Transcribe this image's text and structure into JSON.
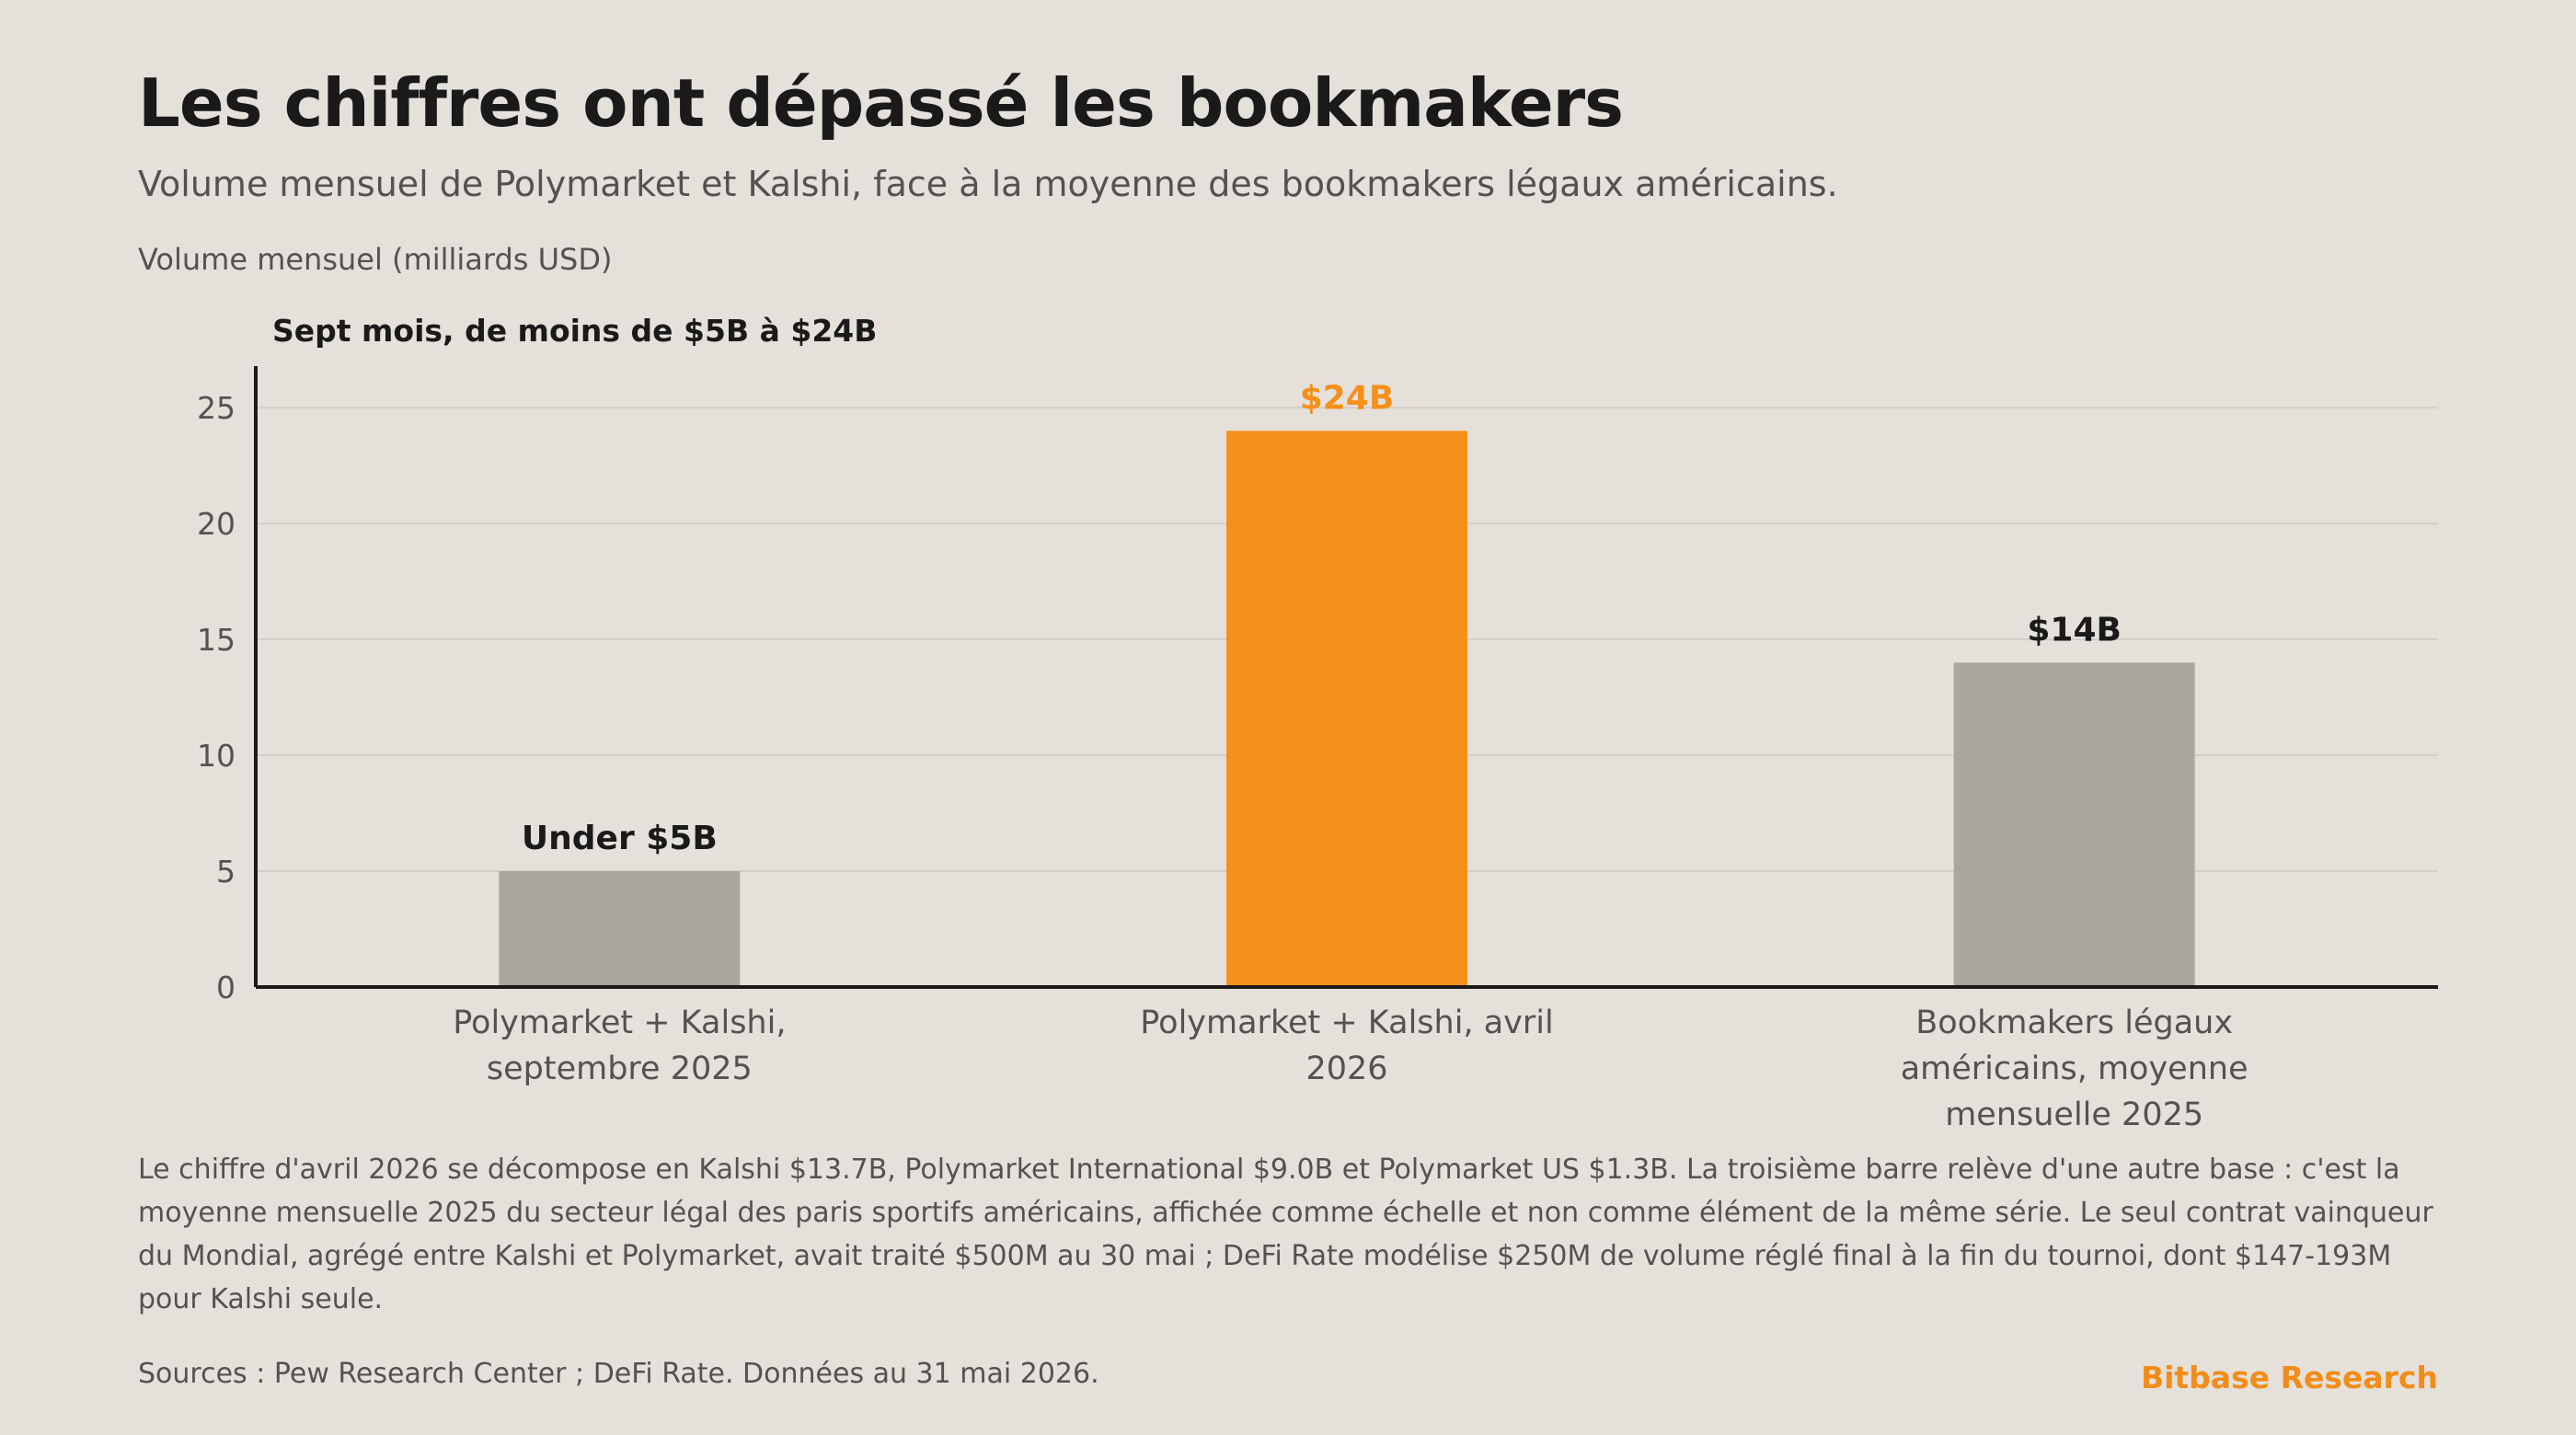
{
  "header": {
    "title": "Les chiffres ont dépassé les bookmakers",
    "subtitle": "Volume mensuel de Polymarket et Kalshi, face à la moyenne des bookmakers légaux américains.",
    "unit_label": "Volume mensuel (milliards USD)",
    "annotation": "Sept mois, de moins de $5B à $24B"
  },
  "colors": {
    "background": "#e5e0da",
    "highlight": "#f5901a",
    "neutral": "#aaa6a0",
    "axis": "#1a1a1a",
    "grid": "#d3cec8",
    "muted_text": "#55524e"
  },
  "chart_data": {
    "type": "bar",
    "categories": [
      [
        "Polymarket + Kalshi,",
        "septembre 2025"
      ],
      [
        "Polymarket + Kalshi, avril",
        "2026"
      ],
      [
        "Bookmakers légaux",
        "américains, moyenne",
        "mensuelle 2025"
      ]
    ],
    "values": [
      5,
      24,
      14
    ],
    "data_labels": [
      "Under $5B",
      "$24B",
      "$14B"
    ],
    "highlight_index": 1,
    "ylim": [
      0,
      26
    ],
    "yticks": [
      0,
      5,
      10,
      15,
      20,
      25
    ],
    "grid": true
  },
  "footer": {
    "note": "Le chiffre d'avril 2026 se décompose en Kalshi $13.7B, Polymarket International $9.0B et Polymarket US $1.3B. La troisième barre relève d'une autre base : c'est la moyenne mensuelle 2025 du secteur légal des paris sportifs américains, affichée comme échelle et non comme élément de la même série. Le seul contrat vainqueur du Mondial, agrégé entre Kalshi et Polymarket, avait traité $500M au 30 mai ; DeFi Rate modélise $250M de volume réglé final à la fin du tournoi, dont $147-193M pour Kalshi seule.",
    "sources": "Sources : Pew Research Center ; DeFi Rate. Données au 31 mai 2026.",
    "brand": "Bitbase Research"
  }
}
